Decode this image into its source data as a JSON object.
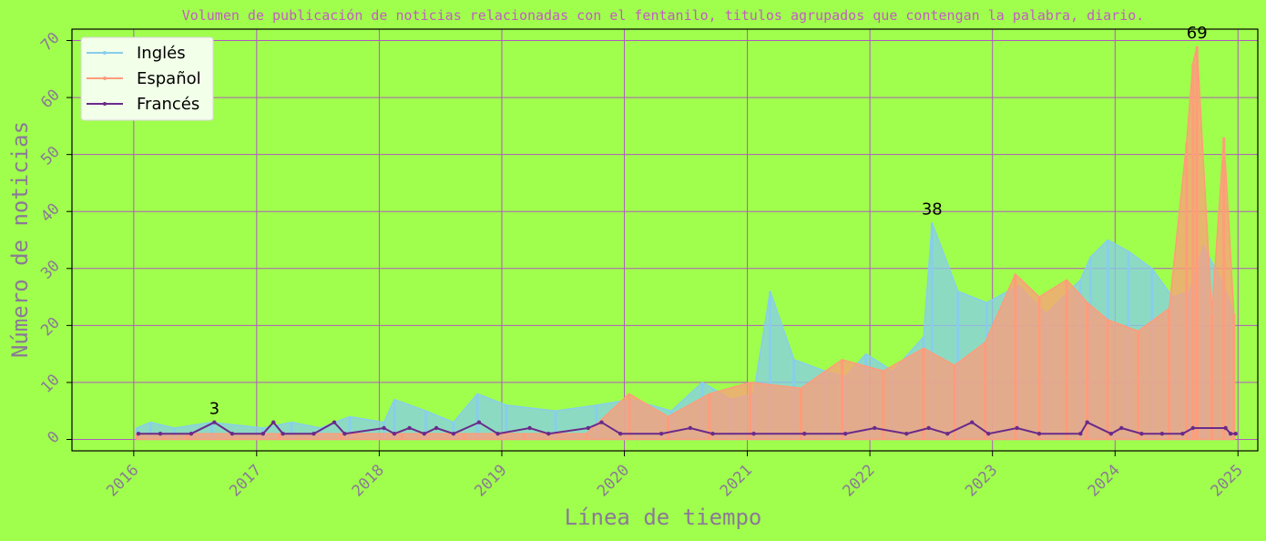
{
  "chart_data": {
    "type": "line",
    "title": "Volumen de publicación de noticias relacionadas con el fentanilo, titulos agrupados que contengan la palabra, diario.",
    "xlabel": "Línea de tiempo",
    "ylabel": "Número de noticias",
    "x_tick_labels": [
      "2016",
      "2017",
      "2018",
      "2019",
      "2020",
      "2021",
      "2022",
      "2023",
      "2024",
      "2025"
    ],
    "y_tick_labels": [
      "0",
      "10",
      "20",
      "30",
      "40",
      "50",
      "60",
      "70"
    ],
    "xlim": [
      "2015-07-01",
      "2025-03-01"
    ],
    "ylim": [
      -2,
      72
    ],
    "grid": true,
    "legend_position": "top-left",
    "colors": {
      "background": "#a0ff4c",
      "title": "#c25cc4",
      "axis_text": "#8a7a96",
      "grid": "#b05ac0",
      "english": "#87ceeb",
      "spanish": "#ff9c7a",
      "french": "#6a2a8a"
    },
    "series": [
      {
        "name": "Inglés",
        "color": "#87ceeb",
        "x": [
          "2016-01-10",
          "2016-02-20",
          "2016-05-01",
          "2016-08-20",
          "2017-01-20",
          "2017-04-15",
          "2017-07-10",
          "2017-10-05",
          "2018-01-15",
          "2018-02-15",
          "2018-05-20",
          "2018-08-10",
          "2018-10-20",
          "2019-01-15",
          "2019-06-10",
          "2019-10-10",
          "2020-01-20",
          "2020-05-20",
          "2020-08-20",
          "2020-11-15",
          "2021-01-20",
          "2021-03-10",
          "2021-05-20",
          "2021-08-20",
          "2021-10-20",
          "2021-12-20",
          "2022-03-10",
          "2022-06-10",
          "2022-07-05",
          "2022-09-20",
          "2022-12-15",
          "2023-03-20",
          "2023-06-10",
          "2023-09-20",
          "2023-10-20",
          "2023-12-10",
          "2024-02-10",
          "2024-04-20",
          "2024-06-20",
          "2024-08-10",
          "2024-09-20",
          "2024-11-20",
          "2024-12-20"
        ],
        "y": [
          2,
          3,
          2,
          3,
          2,
          3,
          2,
          4,
          3,
          7,
          5,
          3,
          8,
          6,
          5,
          6,
          7,
          5,
          10,
          7,
          8,
          26,
          14,
          12,
          11,
          15,
          12,
          18,
          38,
          26,
          24,
          27,
          22,
          28,
          32,
          35,
          33,
          30,
          25,
          26,
          34,
          27,
          22
        ]
      },
      {
        "name": "Español",
        "color": "#ff9c7a",
        "x": [
          "2016-01-10",
          "2016-06-10",
          "2017-03-10",
          "2017-09-10",
          "2018-03-10",
          "2018-09-10",
          "2019-03-10",
          "2019-09-10",
          "2020-01-15",
          "2020-05-10",
          "2020-09-10",
          "2021-01-10",
          "2021-06-10",
          "2021-10-10",
          "2022-02-10",
          "2022-06-10",
          "2022-09-10",
          "2022-12-10",
          "2023-03-10",
          "2023-05-20",
          "2023-08-10",
          "2023-10-10",
          "2023-12-10",
          "2024-03-10",
          "2024-06-10",
          "2024-08-01",
          "2024-08-20",
          "2024-09-01",
          "2024-10-15",
          "2024-11-20",
          "2024-12-20"
        ],
        "y": [
          1,
          1,
          1,
          1,
          1,
          1,
          1,
          1,
          8,
          4,
          8,
          10,
          9,
          14,
          12,
          16,
          13,
          17,
          29,
          25,
          28,
          24,
          21,
          19,
          23,
          52,
          66,
          69,
          22,
          53,
          22
        ]
      },
      {
        "name": "Francés",
        "color": "#6a2a8a",
        "x": [
          "2016-01-15",
          "2016-03-20",
          "2016-06-20",
          "2016-08-28",
          "2016-10-20",
          "2017-01-20",
          "2017-02-20",
          "2017-03-20",
          "2017-06-20",
          "2017-08-20",
          "2017-09-20",
          "2018-01-15",
          "2018-02-15",
          "2018-04-01",
          "2018-05-15",
          "2018-06-20",
          "2018-08-10",
          "2018-10-25",
          "2018-12-20",
          "2019-03-25",
          "2019-05-20",
          "2019-09-15",
          "2019-10-25",
          "2019-12-20",
          "2020-04-20",
          "2020-07-15",
          "2020-09-20",
          "2021-01-20",
          "2021-06-20",
          "2021-10-20",
          "2022-01-15",
          "2022-04-20",
          "2022-06-25",
          "2022-08-20",
          "2022-11-01",
          "2022-12-20",
          "2023-03-15",
          "2023-05-20",
          "2023-09-20",
          "2023-10-10",
          "2023-12-20",
          "2024-01-20",
          "2024-03-20",
          "2024-05-20",
          "2024-07-20",
          "2024-08-20",
          "2024-11-25",
          "2024-12-10",
          "2024-12-25"
        ],
        "y": [
          1,
          1,
          1,
          3,
          1,
          1,
          3,
          1,
          1,
          3,
          1,
          2,
          1,
          2,
          1,
          2,
          1,
          3,
          1,
          2,
          1,
          2,
          3,
          1,
          1,
          2,
          1,
          1,
          1,
          1,
          2,
          1,
          2,
          1,
          3,
          1,
          2,
          1,
          1,
          3,
          1,
          2,
          1,
          1,
          1,
          2,
          2,
          1,
          1
        ]
      }
    ],
    "annotations": [
      {
        "x": "2016-08-28",
        "y": 3,
        "text": "3"
      },
      {
        "x": "2022-07-05",
        "y": 38,
        "text": "38"
      },
      {
        "x": "2024-09-01",
        "y": 69,
        "text": "69"
      }
    ]
  }
}
